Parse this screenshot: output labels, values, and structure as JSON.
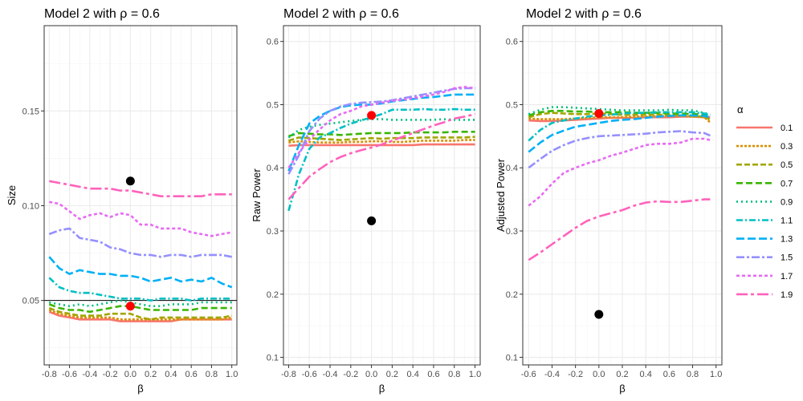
{
  "colors": {
    "alpha_colors": [
      "#F8766D",
      "#D89000",
      "#A3A500",
      "#39B600",
      "#00BF7D",
      "#00BFC4",
      "#00B0F6",
      "#9590FF",
      "#E76BF3",
      "#FF62BC"
    ],
    "point_red": "#FF0000",
    "point_black": "#000000",
    "grid_major": "#EBEBEB",
    "grid_minor": "#F5F5F5",
    "panel_border": "#333333"
  },
  "chart_data": [
    {
      "type": "line",
      "title": "Model 2 with ρ = 0.6",
      "xlabel": "β",
      "ylabel": "Size",
      "xlim": [
        -0.85,
        1.05
      ],
      "ylim": [
        0.016,
        0.195
      ],
      "xticks": [
        -0.8,
        -0.6,
        -0.4,
        -0.2,
        0.0,
        0.2,
        0.4,
        0.6,
        0.8,
        1.0
      ],
      "xtick_labels": [
        "-0.8",
        "-0.6",
        "-0.4",
        "-0.2",
        "0.0",
        "0.2",
        "0.4",
        "0.6",
        "0.8",
        "1.0"
      ],
      "yticks": [
        0.05,
        0.1,
        0.15
      ],
      "ytick_labels": [
        "0.05",
        "0.10",
        "0.15"
      ],
      "hline": 0.05,
      "x": [
        -0.8,
        -0.7,
        -0.6,
        -0.5,
        -0.4,
        -0.3,
        -0.2,
        -0.1,
        0.0,
        0.1,
        0.2,
        0.3,
        0.4,
        0.5,
        0.6,
        0.7,
        0.8,
        0.9,
        1.0
      ],
      "series": [
        {
          "name": "0.1",
          "values": [
            0.044,
            0.042,
            0.041,
            0.04,
            0.04,
            0.04,
            0.04,
            0.039,
            0.039,
            0.039,
            0.039,
            0.039,
            0.039,
            0.04,
            0.04,
            0.04,
            0.04,
            0.04,
            0.04
          ]
        },
        {
          "name": "0.3",
          "values": [
            0.045,
            0.043,
            0.042,
            0.041,
            0.041,
            0.041,
            0.041,
            0.04,
            0.04,
            0.04,
            0.04,
            0.04,
            0.04,
            0.04,
            0.04,
            0.04,
            0.04,
            0.04,
            0.041
          ]
        },
        {
          "name": "0.5",
          "values": [
            0.046,
            0.044,
            0.043,
            0.042,
            0.042,
            0.042,
            0.043,
            0.043,
            0.043,
            0.041,
            0.04,
            0.041,
            0.041,
            0.041,
            0.041,
            0.041,
            0.041,
            0.041,
            0.042
          ]
        },
        {
          "name": "0.7",
          "values": [
            0.048,
            0.046,
            0.045,
            0.045,
            0.044,
            0.045,
            0.046,
            0.047,
            0.047,
            0.046,
            0.045,
            0.045,
            0.045,
            0.045,
            0.045,
            0.046,
            0.046,
            0.046,
            0.046
          ]
        },
        {
          "name": "0.9",
          "values": [
            0.049,
            0.048,
            0.047,
            0.048,
            0.047,
            0.048,
            0.049,
            0.05,
            0.049,
            0.048,
            0.047,
            0.047,
            0.048,
            0.048,
            0.048,
            0.049,
            0.049,
            0.049,
            0.049
          ]
        },
        {
          "name": "1.1",
          "values": [
            0.062,
            0.057,
            0.055,
            0.054,
            0.054,
            0.053,
            0.052,
            0.051,
            0.051,
            0.051,
            0.05,
            0.051,
            0.051,
            0.051,
            0.05,
            0.051,
            0.051,
            0.051,
            0.051
          ]
        },
        {
          "name": "1.3",
          "values": [
            0.073,
            0.067,
            0.064,
            0.066,
            0.065,
            0.064,
            0.064,
            0.063,
            0.063,
            0.062,
            0.06,
            0.061,
            0.062,
            0.06,
            0.061,
            0.06,
            0.062,
            0.059,
            0.057
          ]
        },
        {
          "name": "1.5",
          "values": [
            0.085,
            0.087,
            0.088,
            0.083,
            0.082,
            0.081,
            0.078,
            0.077,
            0.075,
            0.074,
            0.074,
            0.073,
            0.074,
            0.074,
            0.073,
            0.074,
            0.074,
            0.074,
            0.073
          ]
        },
        {
          "name": "1.7",
          "values": [
            0.102,
            0.101,
            0.097,
            0.093,
            0.095,
            0.096,
            0.094,
            0.096,
            0.095,
            0.09,
            0.09,
            0.088,
            0.088,
            0.088,
            0.086,
            0.085,
            0.084,
            0.085,
            0.086
          ]
        },
        {
          "name": "1.9",
          "values": [
            0.113,
            0.112,
            0.111,
            0.11,
            0.109,
            0.109,
            0.109,
            0.108,
            0.108,
            0.107,
            0.106,
            0.105,
            0.105,
            0.105,
            0.105,
            0.105,
            0.106,
            0.106,
            0.106
          ]
        }
      ],
      "points": [
        {
          "x": 0.0,
          "y": 0.113,
          "color": "black"
        },
        {
          "x": 0.0,
          "y": 0.047,
          "color": "red"
        }
      ]
    },
    {
      "type": "line",
      "title": "Model 2 with ρ = 0.6",
      "xlabel": "β",
      "ylabel": "Raw Power",
      "xlim": [
        -0.85,
        1.05
      ],
      "ylim": [
        0.088,
        0.625
      ],
      "xticks": [
        -0.8,
        -0.6,
        -0.4,
        -0.2,
        0.0,
        0.2,
        0.4,
        0.6,
        0.8,
        1.0
      ],
      "xtick_labels": [
        "-0.8",
        "-0.6",
        "-0.4",
        "-0.2",
        "0.0",
        "0.2",
        "0.4",
        "0.6",
        "0.8",
        "1.0"
      ],
      "yticks": [
        0.1,
        0.2,
        0.3,
        0.4,
        0.5,
        0.6
      ],
      "ytick_labels": [
        "0.1",
        "0.2",
        "0.3",
        "0.4",
        "0.5",
        "0.6"
      ],
      "x": [
        -0.8,
        -0.7,
        -0.6,
        -0.5,
        -0.4,
        -0.3,
        -0.2,
        -0.1,
        0.0,
        0.1,
        0.2,
        0.3,
        0.4,
        0.5,
        0.6,
        0.7,
        0.8,
        0.9,
        1.0
      ],
      "series": [
        {
          "name": "0.1",
          "values": [
            0.435,
            0.436,
            0.436,
            0.436,
            0.436,
            0.436,
            0.436,
            0.436,
            0.436,
            0.436,
            0.436,
            0.436,
            0.436,
            0.437,
            0.437,
            0.437,
            0.437,
            0.437,
            0.437
          ]
        },
        {
          "name": "0.3",
          "values": [
            0.44,
            0.442,
            0.441,
            0.44,
            0.44,
            0.44,
            0.441,
            0.441,
            0.442,
            0.442,
            0.441,
            0.441,
            0.442,
            0.443,
            0.443,
            0.443,
            0.443,
            0.444,
            0.444
          ]
        },
        {
          "name": "0.5",
          "values": [
            0.443,
            0.448,
            0.447,
            0.446,
            0.445,
            0.444,
            0.445,
            0.446,
            0.447,
            0.446,
            0.447,
            0.447,
            0.447,
            0.448,
            0.448,
            0.448,
            0.448,
            0.448,
            0.449
          ]
        },
        {
          "name": "0.7",
          "values": [
            0.45,
            0.455,
            0.454,
            0.453,
            0.453,
            0.452,
            0.453,
            0.454,
            0.455,
            0.455,
            0.455,
            0.455,
            0.456,
            0.456,
            0.456,
            0.456,
            0.457,
            0.457,
            0.457
          ]
        },
        {
          "name": "0.9",
          "values": [
            0.448,
            0.46,
            0.465,
            0.468,
            0.47,
            0.472,
            0.474,
            0.476,
            0.477,
            0.477,
            0.476,
            0.476,
            0.476,
            0.476,
            0.476,
            0.477,
            0.476,
            0.476,
            0.476
          ]
        },
        {
          "name": "1.1",
          "values": [
            0.332,
            0.39,
            0.43,
            0.448,
            0.455,
            0.463,
            0.47,
            0.475,
            0.48,
            0.485,
            0.492,
            0.492,
            0.492,
            0.493,
            0.492,
            0.492,
            0.493,
            0.492,
            0.492
          ]
        },
        {
          "name": "1.3",
          "values": [
            0.395,
            0.436,
            0.47,
            0.482,
            0.49,
            0.496,
            0.499,
            0.5,
            0.5,
            0.502,
            0.505,
            0.507,
            0.509,
            0.511,
            0.512,
            0.514,
            0.516,
            0.516,
            0.516
          ]
        },
        {
          "name": "1.5",
          "values": [
            0.39,
            0.42,
            0.458,
            0.478,
            0.49,
            0.497,
            0.501,
            0.503,
            0.504,
            0.505,
            0.507,
            0.51,
            0.513,
            0.516,
            0.519,
            0.522,
            0.525,
            0.526,
            0.526
          ]
        },
        {
          "name": "1.7",
          "values": [
            0.4,
            0.424,
            0.445,
            0.461,
            0.475,
            0.485,
            0.49,
            0.497,
            0.5,
            0.503,
            0.506,
            0.508,
            0.51,
            0.513,
            0.516,
            0.52,
            0.526,
            0.528,
            0.526
          ]
        },
        {
          "name": "1.9",
          "values": [
            0.35,
            0.368,
            0.386,
            0.398,
            0.409,
            0.417,
            0.423,
            0.428,
            0.432,
            0.437,
            0.443,
            0.449,
            0.455,
            0.461,
            0.467,
            0.472,
            0.478,
            0.481,
            0.485
          ]
        }
      ],
      "points": [
        {
          "x": 0.0,
          "y": 0.316,
          "color": "black"
        },
        {
          "x": 0.0,
          "y": 0.483,
          "color": "red"
        }
      ]
    },
    {
      "type": "line",
      "title": "Model 2 with ρ = 0.6",
      "xlabel": "β",
      "ylabel": "Adjusted Power",
      "xlim": [
        -0.65,
        1.05
      ],
      "ylim": [
        0.088,
        0.625
      ],
      "xticks": [
        -0.6,
        -0.4,
        -0.2,
        0.0,
        0.2,
        0.4,
        0.6,
        0.8,
        1.0
      ],
      "xtick_labels": [
        "-0.6",
        "-0.4",
        "-0.2",
        "0.0",
        "0.2",
        "0.4",
        "0.6",
        "0.8",
        "1.0"
      ],
      "yticks": [
        0.1,
        0.2,
        0.3,
        0.4,
        0.5,
        0.6
      ],
      "ytick_labels": [
        "0.1",
        "0.2",
        "0.3",
        "0.4",
        "0.5",
        "0.6"
      ],
      "x": [
        -0.6,
        -0.5,
        -0.4,
        -0.3,
        -0.2,
        -0.1,
        0.0,
        0.1,
        0.2,
        0.3,
        0.4,
        0.5,
        0.6,
        0.7,
        0.8,
        0.9,
        0.95
      ],
      "series": [
        {
          "name": "0.1",
          "values": [
            0.475,
            0.474,
            0.474,
            0.475,
            0.476,
            0.477,
            0.478,
            0.479,
            0.479,
            0.479,
            0.48,
            0.48,
            0.48,
            0.481,
            0.481,
            0.48,
            0.48
          ]
        },
        {
          "name": "0.3",
          "values": [
            0.478,
            0.477,
            0.477,
            0.477,
            0.478,
            0.479,
            0.48,
            0.48,
            0.48,
            0.481,
            0.481,
            0.482,
            0.482,
            0.482,
            0.481,
            0.48,
            0.472
          ]
        },
        {
          "name": "0.5",
          "values": [
            0.48,
            0.485,
            0.487,
            0.486,
            0.485,
            0.485,
            0.486,
            0.485,
            0.484,
            0.484,
            0.484,
            0.484,
            0.484,
            0.483,
            0.482,
            0.481,
            0.476
          ]
        },
        {
          "name": "0.7",
          "values": [
            0.483,
            0.488,
            0.49,
            0.49,
            0.489,
            0.489,
            0.488,
            0.488,
            0.488,
            0.487,
            0.487,
            0.487,
            0.486,
            0.486,
            0.485,
            0.485,
            0.483
          ]
        },
        {
          "name": "0.9",
          "values": [
            0.485,
            0.492,
            0.496,
            0.496,
            0.495,
            0.494,
            0.493,
            0.492,
            0.491,
            0.491,
            0.491,
            0.491,
            0.492,
            0.491,
            0.491,
            0.487,
            0.484
          ]
        },
        {
          "name": "1.1",
          "values": [
            0.443,
            0.46,
            0.471,
            0.475,
            0.478,
            0.481,
            0.483,
            0.484,
            0.486,
            0.487,
            0.487,
            0.488,
            0.488,
            0.488,
            0.488,
            0.486,
            0.483
          ]
        },
        {
          "name": "1.3",
          "values": [
            0.425,
            0.44,
            0.452,
            0.459,
            0.465,
            0.468,
            0.471,
            0.474,
            0.476,
            0.477,
            0.479,
            0.481,
            0.482,
            0.483,
            0.483,
            0.482,
            0.48
          ]
        },
        {
          "name": "1.5",
          "values": [
            0.4,
            0.414,
            0.427,
            0.436,
            0.443,
            0.447,
            0.45,
            0.451,
            0.452,
            0.453,
            0.454,
            0.456,
            0.457,
            0.458,
            0.456,
            0.455,
            0.451
          ]
        },
        {
          "name": "1.7",
          "values": [
            0.34,
            0.355,
            0.375,
            0.392,
            0.4,
            0.407,
            0.412,
            0.419,
            0.424,
            0.43,
            0.436,
            0.438,
            0.438,
            0.44,
            0.446,
            0.446,
            0.444
          ]
        },
        {
          "name": "1.9",
          "values": [
            0.254,
            0.266,
            0.279,
            0.292,
            0.305,
            0.316,
            0.323,
            0.328,
            0.333,
            0.34,
            0.345,
            0.347,
            0.346,
            0.346,
            0.348,
            0.35,
            0.35
          ]
        }
      ],
      "points": [
        {
          "x": 0.0,
          "y": 0.168,
          "color": "black"
        },
        {
          "x": 0.0,
          "y": 0.486,
          "color": "red"
        }
      ]
    }
  ],
  "legend": {
    "title": "α",
    "placement": "right",
    "entries": [
      "0.1",
      "0.3",
      "0.5",
      "0.7",
      "0.9",
      "1.1",
      "1.3",
      "1.5",
      "1.7",
      "1.9"
    ]
  }
}
